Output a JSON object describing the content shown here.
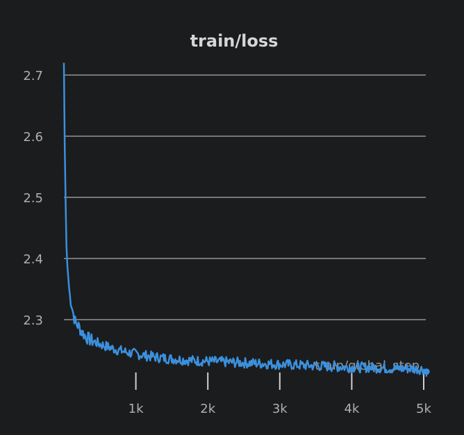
{
  "chart_data": {
    "type": "line",
    "title": "train/loss",
    "xlabel": "train/global_step",
    "ylabel": "",
    "xlim": [
      0,
      5000
    ],
    "ylim": [
      2.2,
      2.72
    ],
    "grid": true,
    "y_ticks": [
      2.3,
      2.4,
      2.5,
      2.6,
      2.7
    ],
    "y_tick_labels": [
      "2.3",
      "2.4",
      "2.5",
      "2.6",
      "2.7"
    ],
    "x_ticks": [
      1000,
      2000,
      3000,
      4000,
      5000
    ],
    "x_tick_labels": [
      "1k",
      "2k",
      "3k",
      "4k",
      "5k"
    ],
    "colors": {
      "series": "#3b90dd",
      "background": "#1b1c1e",
      "grid": "#d0d0d0",
      "text": "#b0b0b0"
    },
    "series": [
      {
        "x": [
          0,
          10,
          20,
          30,
          40,
          60,
          80,
          100,
          130,
          160,
          200,
          250,
          300,
          350,
          400,
          500,
          600,
          700,
          800,
          900,
          1000,
          1200,
          1400,
          1600,
          1800,
          2000,
          2200,
          2400,
          2600,
          2800,
          3000,
          3200,
          3400,
          3600,
          3800,
          4000,
          4200,
          4400,
          4600,
          4800,
          5000,
          5040
        ],
        "y": [
          2.72,
          2.6,
          2.52,
          2.45,
          2.4,
          2.37,
          2.34,
          2.33,
          2.31,
          2.295,
          2.29,
          2.28,
          2.273,
          2.268,
          2.265,
          2.26,
          2.256,
          2.252,
          2.249,
          2.246,
          2.244,
          2.24,
          2.237,
          2.235,
          2.233,
          2.232,
          2.231,
          2.23,
          2.229,
          2.228,
          2.227,
          2.226,
          2.225,
          2.224,
          2.223,
          2.222,
          2.222,
          2.221,
          2.22,
          2.22,
          2.219,
          2.215
        ]
      }
    ]
  }
}
